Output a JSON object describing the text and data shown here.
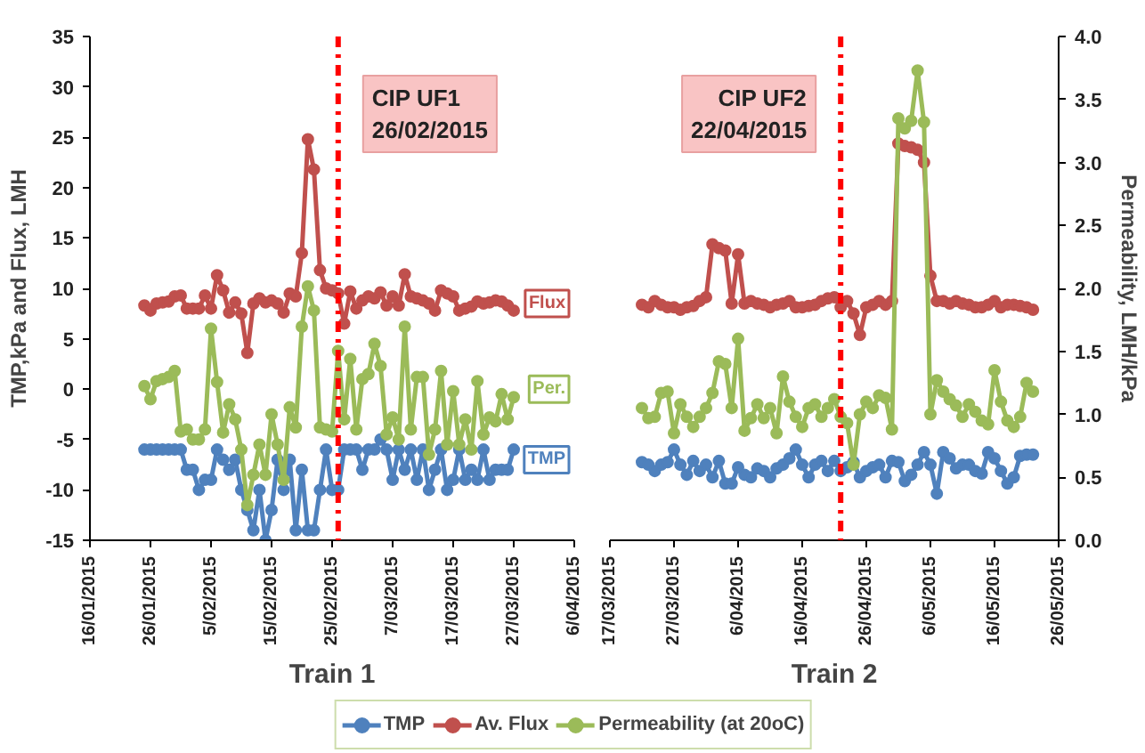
{
  "chart_data": [
    {
      "type": "line",
      "xlabel": "Train 1",
      "ylabel": "TMP,kPa and Flux, LMH",
      "marker": "circle",
      "grid": false,
      "legend": "bottom",
      "x": [
        "2015-01-25",
        "2015-01-26",
        "2015-01-27",
        "2015-01-28",
        "2015-01-29",
        "2015-01-30",
        "2015-01-31",
        "2015-02-01",
        "2015-02-02",
        "2015-02-03",
        "2015-02-04",
        "2015-02-05",
        "2015-02-06",
        "2015-02-07",
        "2015-02-08",
        "2015-02-09",
        "2015-02-10",
        "2015-02-11",
        "2015-02-12",
        "2015-02-13",
        "2015-02-14",
        "2015-02-15",
        "2015-02-16",
        "2015-02-17",
        "2015-02-18",
        "2015-02-19",
        "2015-02-20",
        "2015-02-21",
        "2015-02-22",
        "2015-02-23",
        "2015-02-24",
        "2015-02-25",
        "2015-02-26",
        "2015-02-27",
        "2015-02-28",
        "2015-03-01",
        "2015-03-02",
        "2015-03-03",
        "2015-03-04",
        "2015-03-05",
        "2015-03-06",
        "2015-03-07",
        "2015-03-08",
        "2015-03-09",
        "2015-03-10",
        "2015-03-11",
        "2015-03-12",
        "2015-03-13",
        "2015-03-14",
        "2015-03-15",
        "2015-03-16",
        "2015-03-17",
        "2015-03-18",
        "2015-03-19",
        "2015-03-20",
        "2015-03-21",
        "2015-03-22",
        "2015-03-23",
        "2015-03-24",
        "2015-03-25",
        "2015-03-26",
        "2015-03-27"
      ],
      "series": [
        {
          "name": "TMP",
          "color": "#4f81bd",
          "values": [
            -6,
            -6,
            -6,
            -6,
            -6,
            -6,
            -6,
            -8,
            -8,
            -10,
            -9,
            -9,
            -6,
            -7,
            -8,
            -7,
            -10,
            -12,
            -14,
            -10,
            -15,
            -12,
            -7,
            -10,
            -7,
            -14,
            -8,
            -14,
            -14,
            -10,
            -6,
            -10,
            -10,
            -6,
            -6,
            -6,
            -8,
            -6,
            -6,
            -5,
            -6,
            -9,
            -6,
            -8,
            -6,
            -9,
            -6,
            -10,
            -8,
            -6,
            -10,
            -9,
            -6,
            -9,
            -8,
            -9,
            -6,
            -9,
            -8,
            -8,
            -8,
            -6
          ]
        },
        {
          "name": "Av. Flux",
          "color": "#c0504d",
          "values": [
            8.3,
            7.8,
            8.5,
            8.6,
            8.7,
            9.2,
            9.3,
            8,
            8,
            8,
            9.3,
            8,
            11.3,
            9.8,
            7.6,
            8.6,
            7.5,
            3.6,
            8.5,
            9,
            8.6,
            8.8,
            8.5,
            7.6,
            9.5,
            9.2,
            13.5,
            24.8,
            21.8,
            11.8,
            10,
            9.8,
            9.5,
            6.5,
            9.7,
            8,
            8.8,
            9.2,
            9,
            9.6,
            8.3,
            9.2,
            8.3,
            11.4,
            9.2,
            9,
            8.8,
            8.5,
            7.8,
            9.8,
            9.5,
            9.2,
            7.8,
            8,
            8.2,
            8.7,
            8.5,
            8.6,
            8.8,
            8.7,
            8.3,
            7.8
          ]
        },
        {
          "name": "Permeability (at 20oC)",
          "color": "#9bbb59",
          "values": [
            0.3,
            -1,
            0.8,
            1,
            1.2,
            1.8,
            -4.2,
            -4,
            -5,
            -5,
            -4,
            6,
            0.7,
            -4.3,
            -1.5,
            -3,
            -6,
            -11.5,
            -8.5,
            -5.5,
            -8.5,
            -2.5,
            -5.5,
            -9,
            -1.8,
            -3.8,
            6.2,
            10.2,
            7.8,
            -3.8,
            -4,
            -4.2,
            3.8,
            -3,
            3,
            -4,
            1,
            1.5,
            4.5,
            2.3,
            -4.5,
            -2.8,
            -5,
            6.2,
            -4,
            1.2,
            1.2,
            -6.5,
            -4,
            1.8,
            -5.5,
            -0.2,
            -5.5,
            -3,
            -6,
            0.8,
            -4.5,
            -2.8,
            -3.2,
            -0.5,
            -3,
            -0.8
          ]
        }
      ],
      "xlim": [
        "2015-01-16",
        "2015-04-06"
      ],
      "xticks": [
        {
          "value": "2015-01-16",
          "label": "16/01/2015"
        },
        {
          "value": "2015-01-26",
          "label": "26/01/2015"
        },
        {
          "value": "2015-02-05",
          "label": "5/02/2015"
        },
        {
          "value": "2015-02-15",
          "label": "15/02/2015"
        },
        {
          "value": "2015-02-25",
          "label": "25/02/2015"
        },
        {
          "value": "2015-03-07",
          "label": "7/03/2015"
        },
        {
          "value": "2015-03-17",
          "label": "17/03/2015"
        },
        {
          "value": "2015-03-27",
          "label": "27/03/2015"
        },
        {
          "value": "2015-04-06",
          "label": "6/04/2015"
        }
      ],
      "ylim": [
        -15,
        35
      ],
      "yticks": [
        -15,
        -10,
        -5,
        0,
        5,
        10,
        15,
        20,
        25,
        30,
        35
      ],
      "ref_lines": [
        {
          "axis": "x",
          "value": "2015-02-26",
          "label": "CIP UF1\n26/02/2015",
          "color": "#ff0000",
          "line_style": "dashdot"
        }
      ],
      "annotations": [
        {
          "text": "TMP",
          "y": -7
        },
        {
          "text": "Flux",
          "y": 8.5
        },
        {
          "text": "Per.",
          "y": 0
        }
      ]
    },
    {
      "type": "line",
      "xlabel": "Train 2",
      "y2label": "Permeability, LMH/kPa",
      "marker": "circle",
      "grid": false,
      "x": [
        "2015-03-22",
        "2015-03-23",
        "2015-03-24",
        "2015-03-25",
        "2015-03-26",
        "2015-03-27",
        "2015-03-28",
        "2015-03-29",
        "2015-03-30",
        "2015-03-31",
        "2015-04-01",
        "2015-04-02",
        "2015-04-03",
        "2015-04-04",
        "2015-04-05",
        "2015-04-06",
        "2015-04-07",
        "2015-04-08",
        "2015-04-09",
        "2015-04-10",
        "2015-04-11",
        "2015-04-12",
        "2015-04-13",
        "2015-04-14",
        "2015-04-15",
        "2015-04-16",
        "2015-04-17",
        "2015-04-18",
        "2015-04-19",
        "2015-04-20",
        "2015-04-21",
        "2015-04-22",
        "2015-04-23",
        "2015-04-24",
        "2015-04-25",
        "2015-04-26",
        "2015-04-27",
        "2015-04-28",
        "2015-04-29",
        "2015-04-30",
        "2015-05-01",
        "2015-05-02",
        "2015-05-03",
        "2015-05-04",
        "2015-05-05",
        "2015-05-06",
        "2015-05-07",
        "2015-05-08",
        "2015-05-09",
        "2015-05-10",
        "2015-05-11",
        "2015-05-12",
        "2015-05-13",
        "2015-05-14",
        "2015-05-15",
        "2015-05-16",
        "2015-05-17",
        "2015-05-18",
        "2015-05-19",
        "2015-05-20",
        "2015-05-21",
        "2015-05-22"
      ],
      "series": [
        {
          "color": "#4f81bd",
          "axis": "y2",
          "values": [
            0.62,
            0.6,
            0.55,
            0.6,
            0.62,
            0.72,
            0.6,
            0.52,
            0.63,
            0.55,
            0.6,
            0.5,
            0.63,
            0.45,
            0.45,
            0.58,
            0.52,
            0.5,
            0.57,
            0.55,
            0.5,
            0.57,
            0.6,
            0.65,
            0.72,
            0.6,
            0.5,
            0.6,
            0.63,
            0.55,
            0.63,
            0.55,
            0.58,
            0.62,
            0.5,
            0.55,
            0.58,
            0.6,
            0.5,
            0.63,
            0.62,
            0.47,
            0.52,
            0.6,
            0.7,
            0.6,
            0.37,
            0.7,
            0.65,
            0.57,
            0.6,
            0.6,
            0.55,
            0.53,
            0.7,
            0.65,
            0.55,
            0.45,
            0.5,
            0.67,
            0.68,
            0.68
          ]
        },
        {
          "color": "#c0504d",
          "axis": "y2",
          "values": [
            1.87,
            1.85,
            1.9,
            1.87,
            1.85,
            1.85,
            1.83,
            1.85,
            1.86,
            1.9,
            1.93,
            2.35,
            2.32,
            2.3,
            1.88,
            2.27,
            1.88,
            1.9,
            1.88,
            1.87,
            1.85,
            1.87,
            1.88,
            1.9,
            1.85,
            1.85,
            1.86,
            1.87,
            1.9,
            1.92,
            1.93,
            1.85,
            1.9,
            1.8,
            1.63,
            1.85,
            1.87,
            1.9,
            1.87,
            1.9,
            3.15,
            3.13,
            3.12,
            3.1,
            3.0,
            2.1,
            1.9,
            1.9,
            1.88,
            1.9,
            1.88,
            1.87,
            1.85,
            1.85,
            1.87,
            1.9,
            1.85,
            1.87,
            1.87,
            1.86,
            1.85,
            1.83
          ]
        },
        {
          "color": "#9bbb59",
          "axis": "y2",
          "values": [
            1.05,
            0.97,
            0.98,
            1.17,
            1.18,
            0.85,
            1.08,
            0.98,
            0.9,
            0.98,
            1.05,
            1.17,
            1.42,
            1.4,
            1.05,
            1.6,
            0.87,
            0.97,
            1.08,
            0.97,
            1.05,
            0.85,
            1.3,
            1.1,
            0.98,
            0.9,
            1.05,
            1.08,
            0.98,
            1.05,
            1.12,
            0.98,
            0.93,
            0.6,
            1.0,
            1.1,
            1.05,
            1.15,
            1.13,
            0.88,
            3.35,
            3.27,
            3.33,
            3.73,
            3.32,
            1.0,
            1.27,
            1.18,
            1.12,
            1.07,
            0.98,
            1.08,
            1.02,
            0.95,
            0.92,
            1.35,
            1.1,
            0.95,
            0.9,
            0.98,
            1.25,
            1.18
          ]
        }
      ],
      "xlim": [
        "2015-03-17",
        "2015-05-26"
      ],
      "xticks": [
        {
          "value": "2015-03-17",
          "label": "17/03/2015"
        },
        {
          "value": "2015-03-27",
          "label": "27/03/2015"
        },
        {
          "value": "2015-04-06",
          "label": "6/04/2015"
        },
        {
          "value": "2015-04-16",
          "label": "16/04/2015"
        },
        {
          "value": "2015-04-26",
          "label": "26/04/2015"
        },
        {
          "value": "2015-05-06",
          "label": "6/05/2015"
        },
        {
          "value": "2015-05-16",
          "label": "16/05/2015"
        },
        {
          "value": "2015-05-26",
          "label": "26/05/2015"
        }
      ],
      "y2lim": [
        0,
        4
      ],
      "y2ticks": [
        {
          "value": 0,
          "label": "0.0"
        },
        {
          "value": 0.5,
          "label": "0.5"
        },
        {
          "value": 1,
          "label": "1.0"
        },
        {
          "value": 1.5,
          "label": "1.5"
        },
        {
          "value": 2,
          "label": "2.0"
        },
        {
          "value": 2.5,
          "label": "2.5"
        },
        {
          "value": 3,
          "label": "3.0"
        },
        {
          "value": 3.5,
          "label": "3.5"
        },
        {
          "value": 4,
          "label": "4.0"
        }
      ],
      "ref_lines": [
        {
          "axis": "x",
          "value": "2015-04-22",
          "label": "CIP UF2\n22/04/2015",
          "color": "#ff0000",
          "line_style": "dashdot"
        }
      ]
    }
  ]
}
